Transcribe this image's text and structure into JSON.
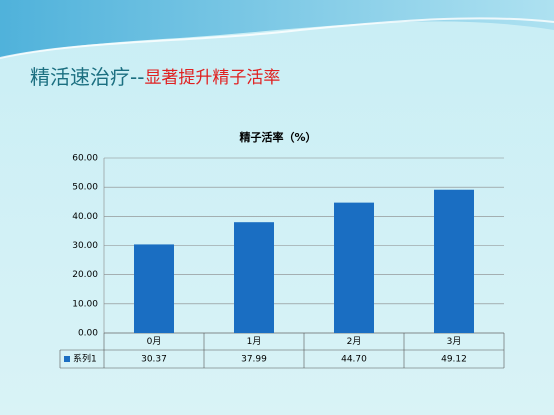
{
  "heading": {
    "main": "精活速治疗--",
    "highlight": "显著提升精子活率"
  },
  "chart_data": {
    "type": "bar",
    "title": "精子活率（%）",
    "categories": [
      "0月",
      "1月",
      "2月",
      "3月"
    ],
    "series": [
      {
        "name": "系列1",
        "color": "#1a6ec2",
        "values": [
          30.37,
          37.99,
          44.7,
          49.12
        ],
        "value_labels": [
          "30.37",
          "37.99",
          "44.70",
          "49.12"
        ]
      }
    ],
    "ylim": [
      0,
      60
    ],
    "yticks": [
      {
        "value": 0,
        "label": "0.00"
      },
      {
        "value": 10,
        "label": "10.00"
      },
      {
        "value": 20,
        "label": "20.00"
      },
      {
        "value": 30,
        "label": "30.00"
      },
      {
        "value": 40,
        "label": "40.00"
      },
      {
        "value": 50,
        "label": "50.00"
      },
      {
        "value": 60,
        "label": "60.00"
      }
    ],
    "grid": true,
    "data_table": true
  }
}
